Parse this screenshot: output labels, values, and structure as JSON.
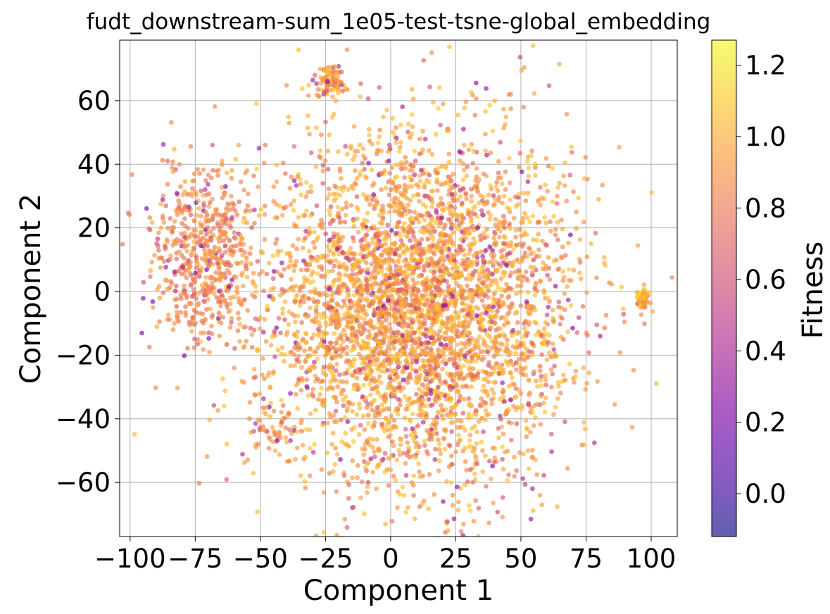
{
  "chart_data": {
    "type": "scatter",
    "title": "fudt_downstream-sum_1e05-test-tsne-global_embedding",
    "xlabel": "Component 1",
    "ylabel": "Component 2",
    "xlim": [
      -104,
      110
    ],
    "ylim": [
      -77,
      79
    ],
    "xticks": [
      -100,
      -75,
      -50,
      -25,
      0,
      25,
      50,
      75,
      100
    ],
    "xtick_labels": [
      "−100",
      "−75",
      "−50",
      "−25",
      "0",
      "25",
      "50",
      "75",
      "100"
    ],
    "yticks": [
      -60,
      -40,
      -20,
      0,
      20,
      40,
      60
    ],
    "ytick_labels": [
      "−60",
      "−40",
      "−20",
      "0",
      "20",
      "40",
      "60"
    ],
    "grid": true,
    "colorbar": {
      "label": "Fitness",
      "colormap": "plasma",
      "alpha": 0.65,
      "range": [
        -0.12,
        1.27
      ],
      "ticks": [
        0.0,
        0.2,
        0.4,
        0.6,
        0.8,
        1.0,
        1.2
      ],
      "tick_labels": [
        "0.0",
        "0.2",
        "0.4",
        "0.6",
        "0.8",
        "1.0",
        "1.2"
      ]
    },
    "series": [
      {
        "points_note": "approx. 5000 t-SNE points, each colored by fitness",
        "clusters": [
          {
            "center": [
              10,
              -5
            ],
            "spread": [
              30,
              27
            ],
            "count": 4200,
            "fitness_mean": 0.95
          },
          {
            "center": [
              -72,
              12
            ],
            "spread": [
              10,
              13
            ],
            "count": 560,
            "fitness_mean": 0.85
          },
          {
            "center": [
              -23,
              66
            ],
            "spread": [
              3,
              2.5
            ],
            "count": 90,
            "fitness_mean": 0.95
          },
          {
            "center": [
              97,
              -2
            ],
            "spread": [
              1.3,
              1.8
            ],
            "count": 60,
            "fitness_mean": 1.0
          },
          {
            "center": [
              -45,
              -42
            ],
            "spread": [
              5,
              4
            ],
            "count": 40,
            "fitness_mean": 0.85
          }
        ]
      }
    ]
  }
}
